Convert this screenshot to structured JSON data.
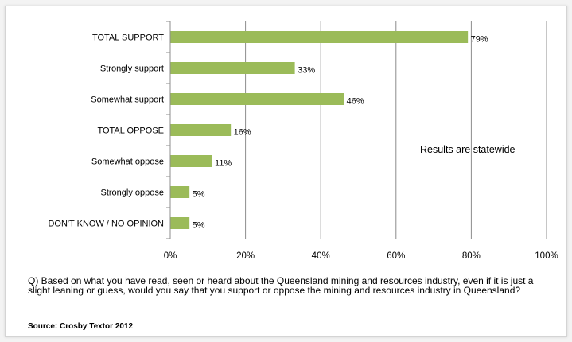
{
  "chart_data": {
    "type": "bar",
    "orientation": "horizontal",
    "categories": [
      "TOTAL SUPPORT",
      "Strongly support",
      "Somewhat support",
      "TOTAL OPPOSE",
      "Somewhat oppose",
      "Strongly oppose",
      "DON'T KNOW / NO OPINION"
    ],
    "values": [
      79,
      33,
      46,
      16,
      11,
      5,
      5
    ],
    "value_labels": [
      "79%",
      "33%",
      "46%",
      "16%",
      "11%",
      "5%",
      "5%"
    ],
    "xlim": [
      0,
      100
    ],
    "x_ticks": [
      0,
      20,
      40,
      60,
      80,
      100
    ],
    "x_tick_labels": [
      "0%",
      "20%",
      "40%",
      "60%",
      "80%",
      "100%"
    ],
    "grid": "vertical",
    "bar_color": "#9bbb59",
    "annotation": "Results are statewide"
  },
  "question": "Q) Based on what you have read, seen or heard about the Queensland mining and resources industry, even if it is just a slight leaning or guess, would you say that you support or oppose the mining and resources industry in Queensland?",
  "source": "Source: Crosby Textor 2012"
}
